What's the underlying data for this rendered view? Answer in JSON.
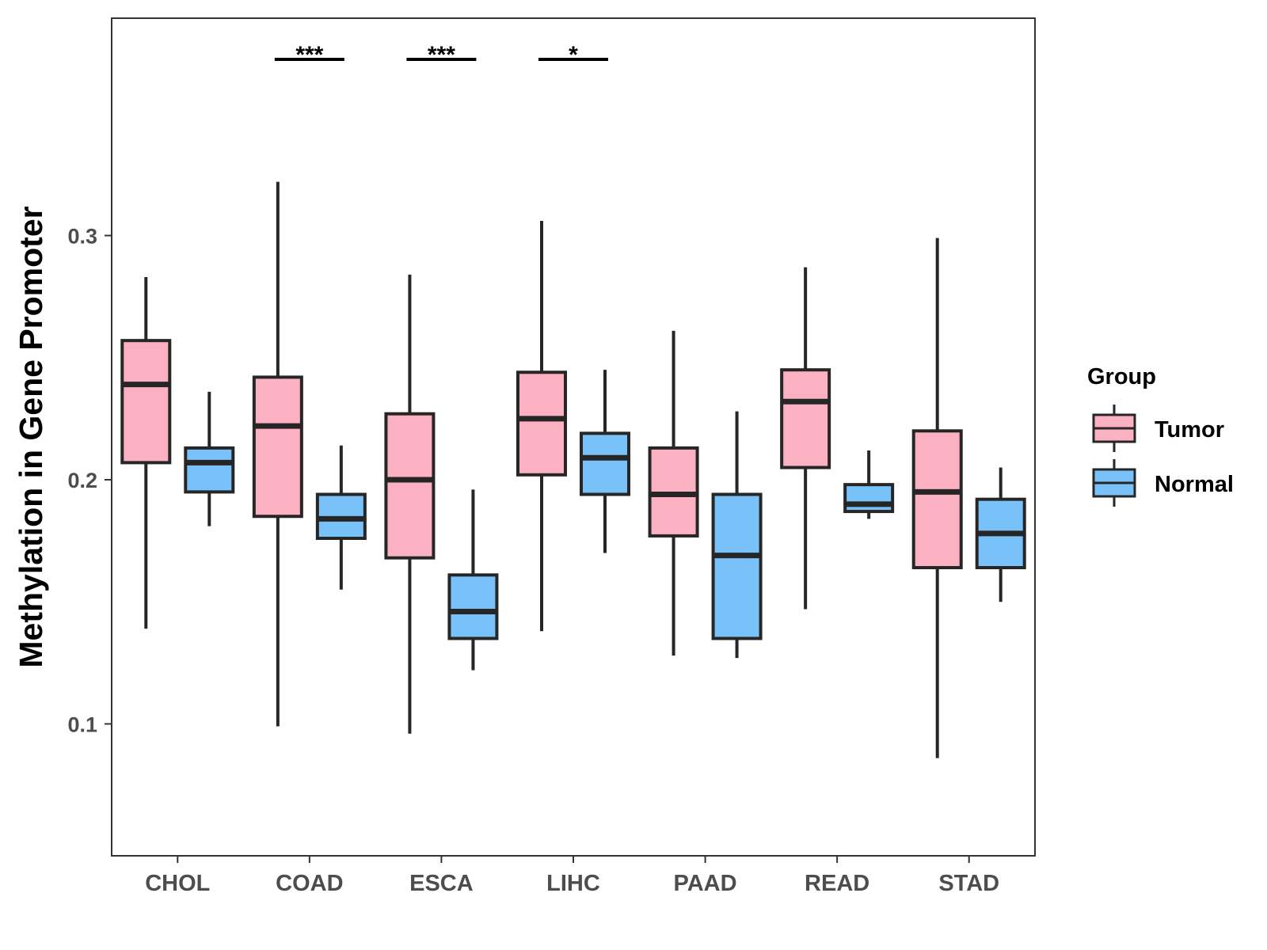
{
  "chart_data": {
    "type": "boxplot",
    "ylabel": "Methylation in Gene Promoter",
    "xlabel": "",
    "ylim": [
      0.046,
      0.389
    ],
    "yticks": [
      0.1,
      0.2,
      0.3
    ],
    "ytick_labels": [
      "0.1",
      "0.2",
      "0.3"
    ],
    "categories": [
      "CHOL",
      "COAD",
      "ESCA",
      "LIHC",
      "PAAD",
      "READ",
      "STAD"
    ],
    "legend": {
      "title": "Group",
      "position": "right",
      "entries": [
        {
          "name": "Tumor",
          "color": "#fbb1c2"
        },
        {
          "name": "Normal",
          "color": "#79c1f9"
        }
      ]
    },
    "series": [
      {
        "name": "Tumor",
        "color": "#fbb1c2",
        "boxes": [
          {
            "category": "CHOL",
            "whisker_low": 0.139,
            "q1": 0.207,
            "median": 0.239,
            "q3": 0.257,
            "whisker_high": 0.283
          },
          {
            "category": "COAD",
            "whisker_low": 0.099,
            "q1": 0.185,
            "median": 0.222,
            "q3": 0.242,
            "whisker_high": 0.322
          },
          {
            "category": "ESCA",
            "whisker_low": 0.096,
            "q1": 0.168,
            "median": 0.2,
            "q3": 0.227,
            "whisker_high": 0.284
          },
          {
            "category": "LIHC",
            "whisker_low": 0.138,
            "q1": 0.202,
            "median": 0.225,
            "q3": 0.244,
            "whisker_high": 0.306
          },
          {
            "category": "PAAD",
            "whisker_low": 0.128,
            "q1": 0.177,
            "median": 0.194,
            "q3": 0.213,
            "whisker_high": 0.261
          },
          {
            "category": "READ",
            "whisker_low": 0.147,
            "q1": 0.205,
            "median": 0.232,
            "q3": 0.245,
            "whisker_high": 0.287
          },
          {
            "category": "STAD",
            "whisker_low": 0.086,
            "q1": 0.164,
            "median": 0.195,
            "q3": 0.22,
            "whisker_high": 0.299
          }
        ]
      },
      {
        "name": "Normal",
        "color": "#79c1f9",
        "boxes": [
          {
            "category": "CHOL",
            "whisker_low": 0.181,
            "q1": 0.195,
            "median": 0.207,
            "q3": 0.213,
            "whisker_high": 0.236
          },
          {
            "category": "COAD",
            "whisker_low": 0.155,
            "q1": 0.176,
            "median": 0.184,
            "q3": 0.194,
            "whisker_high": 0.214
          },
          {
            "category": "ESCA",
            "whisker_low": 0.122,
            "q1": 0.135,
            "median": 0.146,
            "q3": 0.161,
            "whisker_high": 0.196
          },
          {
            "category": "LIHC",
            "whisker_low": 0.17,
            "q1": 0.194,
            "median": 0.209,
            "q3": 0.219,
            "whisker_high": 0.245
          },
          {
            "category": "PAAD",
            "whisker_low": 0.127,
            "q1": 0.135,
            "median": 0.169,
            "q3": 0.194,
            "whisker_high": 0.228
          },
          {
            "category": "READ",
            "whisker_low": 0.184,
            "q1": 0.187,
            "median": 0.19,
            "q3": 0.198,
            "whisker_high": 0.212
          },
          {
            "category": "STAD",
            "whisker_low": 0.15,
            "q1": 0.164,
            "median": 0.178,
            "q3": 0.192,
            "whisker_high": 0.205
          }
        ]
      }
    ],
    "annotations": [
      {
        "category": "COAD",
        "label": "***"
      },
      {
        "category": "ESCA",
        "label": "***"
      },
      {
        "category": "LIHC",
        "label": "*"
      }
    ],
    "grid": false
  }
}
